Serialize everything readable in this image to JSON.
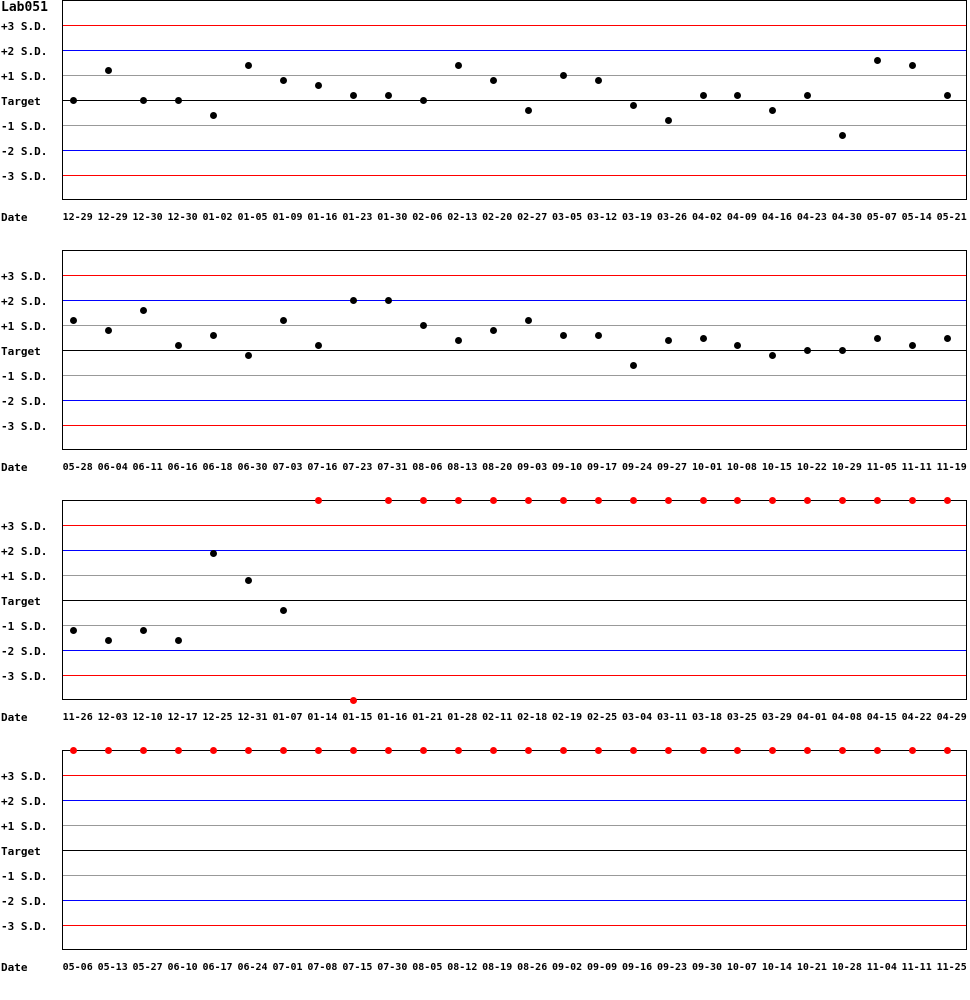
{
  "title": "Lab051",
  "xlabel": "Date",
  "sd_axis_labels": [
    "+3 S.D.",
    "+2 S.D.",
    "+1 S.D.",
    "Target",
    "-1 S.D.",
    "-2 S.D.",
    "-3 S.D."
  ],
  "colors": {
    "sd3_line": "#ff0000",
    "sd2_line": "#0000ff",
    "sd1_line": "#999999",
    "target_line": "#000000",
    "in_range_point": "#000000",
    "out_of_range_point": "#ff0000",
    "background": "#ffffff",
    "text": "#000000"
  },
  "chart_data": [
    {
      "type": "scatter",
      "panel": 1,
      "xlabel": "Date",
      "ylim_sd": [
        -4,
        4
      ],
      "line_values_sd": [
        3,
        2,
        1,
        0,
        -1,
        -2,
        -3
      ],
      "x_dates": [
        "12-29",
        "12-29",
        "12-30",
        "12-30",
        "01-02",
        "01-05",
        "01-09",
        "01-16",
        "01-23",
        "01-30",
        "02-06",
        "02-13",
        "02-20",
        "02-27",
        "03-05",
        "03-12",
        "03-19",
        "03-26",
        "04-02",
        "04-09",
        "04-16",
        "04-23",
        "04-30",
        "05-07",
        "05-14",
        "05-21"
      ],
      "values_sd": [
        0,
        1.2,
        0,
        0,
        -0.6,
        1.4,
        0.8,
        0.6,
        0.2,
        0.2,
        0,
        1.4,
        0.8,
        -0.4,
        1.0,
        0.8,
        -0.2,
        -0.8,
        0.2,
        0.2,
        -0.4,
        0.2,
        -1.4,
        1.6,
        1.4,
        0.2
      ]
    },
    {
      "type": "scatter",
      "panel": 2,
      "xlabel": "Date",
      "ylim_sd": [
        -4,
        4
      ],
      "line_values_sd": [
        3,
        2,
        1,
        0,
        -1,
        -2,
        -3
      ],
      "x_dates": [
        "05-28",
        "06-04",
        "06-11",
        "06-16",
        "06-18",
        "06-30",
        "07-03",
        "07-16",
        "07-23",
        "07-31",
        "08-06",
        "08-13",
        "08-20",
        "09-03",
        "09-10",
        "09-17",
        "09-24",
        "09-27",
        "10-01",
        "10-08",
        "10-15",
        "10-22",
        "10-29",
        "11-05",
        "11-11",
        "11-19"
      ],
      "values_sd": [
        1.2,
        0.8,
        1.6,
        0.2,
        0.6,
        -0.2,
        1.2,
        0.2,
        2.0,
        2.0,
        1.0,
        0.4,
        0.8,
        1.2,
        0.6,
        0.6,
        -0.6,
        0.4,
        0.45,
        0.2,
        -0.2,
        0,
        0,
        0.45,
        0.2,
        0.45
      ]
    },
    {
      "type": "scatter",
      "panel": 3,
      "xlabel": "Date",
      "ylim_sd": [
        -4,
        4
      ],
      "line_values_sd": [
        3,
        2,
        1,
        0,
        -1,
        -2,
        -3
      ],
      "x_dates": [
        "11-26",
        "12-03",
        "12-10",
        "12-17",
        "12-25",
        "12-31",
        "01-07",
        "01-14",
        "01-15",
        "01-16",
        "01-21",
        "01-28",
        "02-11",
        "02-18",
        "02-19",
        "02-25",
        "03-04",
        "03-11",
        "03-18",
        "03-25",
        "03-29",
        "04-01",
        "04-08",
        "04-15",
        "04-22",
        "04-29"
      ],
      "values_sd": [
        -1.2,
        -1.6,
        -1.2,
        -1.6,
        1.85,
        0.8,
        -0.4,
        "high",
        "low",
        "high",
        "high",
        "high",
        "high",
        "high",
        "high",
        "high",
        "high",
        "high",
        "high",
        "high",
        "high",
        "high",
        "high",
        "high",
        "high",
        "high"
      ]
    },
    {
      "type": "scatter",
      "panel": 4,
      "xlabel": "Date",
      "ylim_sd": [
        -4,
        4
      ],
      "line_values_sd": [
        3,
        2,
        1,
        0,
        -1,
        -2,
        -3
      ],
      "x_dates": [
        "05-06",
        "05-13",
        "05-27",
        "06-10",
        "06-17",
        "06-24",
        "07-01",
        "07-08",
        "07-15",
        "07-30",
        "08-05",
        "08-12",
        "08-19",
        "08-26",
        "09-02",
        "09-09",
        "09-16",
        "09-23",
        "09-30",
        "10-07",
        "10-14",
        "10-21",
        "10-28",
        "11-04",
        "11-11",
        "11-25"
      ],
      "values_sd": [
        "high",
        "high",
        "high",
        "high",
        "high",
        "high",
        "high",
        "high",
        "high",
        "high",
        "high",
        "high",
        "high",
        "high",
        "high",
        "high",
        "high",
        "high",
        "high",
        "high",
        "high",
        "high",
        "high",
        "high",
        "high",
        "high"
      ]
    }
  ]
}
